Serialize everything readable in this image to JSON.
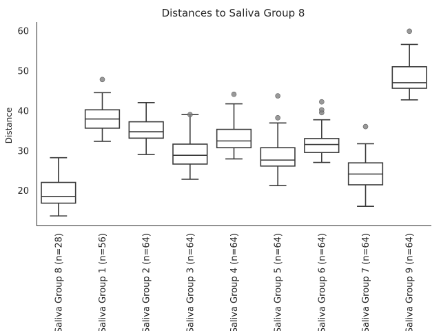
{
  "chart_data": {
    "type": "box",
    "title": "Distances to Saliva Group 8",
    "xlabel": "",
    "ylabel": "Distance",
    "ylim": [
      11.2,
      62.2
    ],
    "yticks": [
      20,
      30,
      40,
      50,
      60
    ],
    "grid": false,
    "categories": [
      "Saliva Group 8 (n=28)",
      "Saliva Group 1 (n=56)",
      "Saliva Group 2 (n=64)",
      "Saliva Group 3 (n=64)",
      "Saliva Group 4 (n=64)",
      "Saliva Group 5 (n=64)",
      "Saliva Group 6 (n=64)",
      "Saliva Group 7 (n=64)",
      "Saliva Group 9 (n=64)"
    ],
    "boxes": [
      {
        "whisker_low": 13.6,
        "q1": 16.8,
        "median": 18.5,
        "q3": 22.0,
        "whisker_high": 28.2,
        "outliers": []
      },
      {
        "whisker_low": 32.3,
        "q1": 35.6,
        "median": 37.9,
        "q3": 40.2,
        "whisker_high": 44.5,
        "outliers": [
          47.8
        ]
      },
      {
        "whisker_low": 29.0,
        "q1": 33.1,
        "median": 34.7,
        "q3": 37.2,
        "whisker_high": 42.0,
        "outliers": []
      },
      {
        "whisker_low": 22.8,
        "q1": 26.6,
        "median": 28.8,
        "q3": 31.6,
        "whisker_high": 39.0,
        "outliers": [
          39.0
        ]
      },
      {
        "whisker_low": 27.9,
        "q1": 30.7,
        "median": 32.4,
        "q3": 35.3,
        "whisker_high": 41.7,
        "outliers": [
          44.1
        ]
      },
      {
        "whisker_low": 21.2,
        "q1": 26.1,
        "median": 27.6,
        "q3": 30.7,
        "whisker_high": 36.9,
        "outliers": [
          38.2,
          43.7
        ]
      },
      {
        "whisker_low": 27.0,
        "q1": 29.5,
        "median": 31.5,
        "q3": 33.0,
        "whisker_high": 37.7,
        "outliers": [
          39.5,
          40.2,
          42.2
        ]
      },
      {
        "whisker_low": 16.0,
        "q1": 21.4,
        "median": 24.1,
        "q3": 26.9,
        "whisker_high": 31.7,
        "outliers": [
          36.0
        ]
      },
      {
        "whisker_low": 42.7,
        "q1": 45.6,
        "median": 47.0,
        "q3": 51.0,
        "whisker_high": 56.6,
        "outliers": [
          59.9
        ]
      }
    ]
  }
}
